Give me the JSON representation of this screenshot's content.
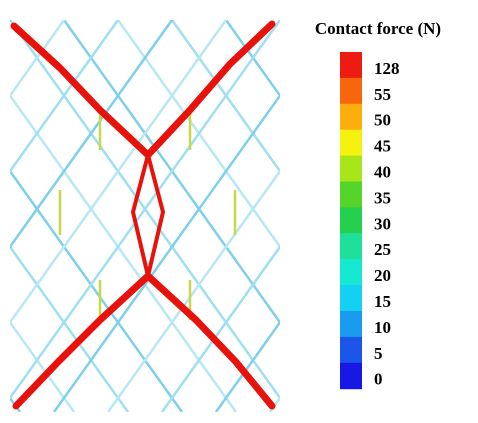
{
  "legend": {
    "title": "Contact force (N)",
    "entries": [
      {
        "label": "128",
        "color": "#ee1c10"
      },
      {
        "label": "55",
        "color": "#f7660a"
      },
      {
        "label": "50",
        "color": "#fbae0c"
      },
      {
        "label": "45",
        "color": "#f5f20f"
      },
      {
        "label": "40",
        "color": "#a8e61a"
      },
      {
        "label": "35",
        "color": "#55d52a"
      },
      {
        "label": "30",
        "color": "#24d14f"
      },
      {
        "label": "25",
        "color": "#1ee09a"
      },
      {
        "label": "20",
        "color": "#17e8d2"
      },
      {
        "label": "15",
        "color": "#14d0f2"
      },
      {
        "label": "10",
        "color": "#199cf0"
      },
      {
        "label": "5",
        "color": "#1c55ea"
      },
      {
        "label": "0",
        "color": "#1818e6"
      }
    ]
  }
}
